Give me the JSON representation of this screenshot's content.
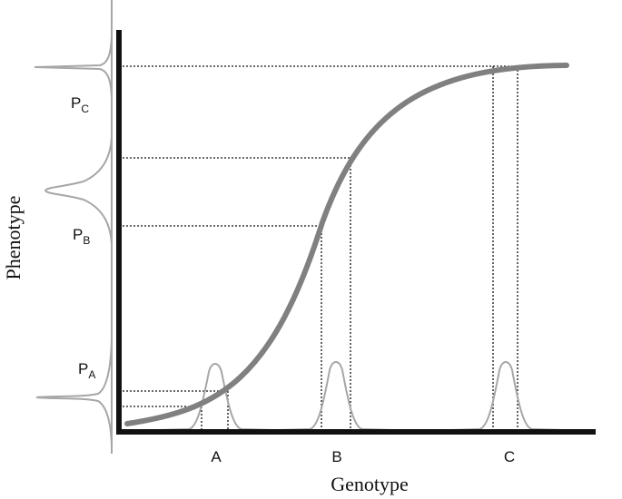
{
  "axes": {
    "x_label": "Genotype",
    "y_label": "Phenotype"
  },
  "genotype_labels": [
    {
      "id": "a",
      "text": "A"
    },
    {
      "id": "b",
      "text": "B"
    },
    {
      "id": "c",
      "text": "C"
    }
  ],
  "phenotype_labels": [
    {
      "id": "c",
      "base": "P",
      "sub": "C"
    },
    {
      "id": "b",
      "base": "P",
      "sub": "B"
    },
    {
      "id": "a",
      "base": "P",
      "sub": "A"
    }
  ],
  "colors": {
    "axis": "#111111",
    "curve": "#808080",
    "distribution": "#a6a6a6",
    "guide": "#111111"
  }
}
